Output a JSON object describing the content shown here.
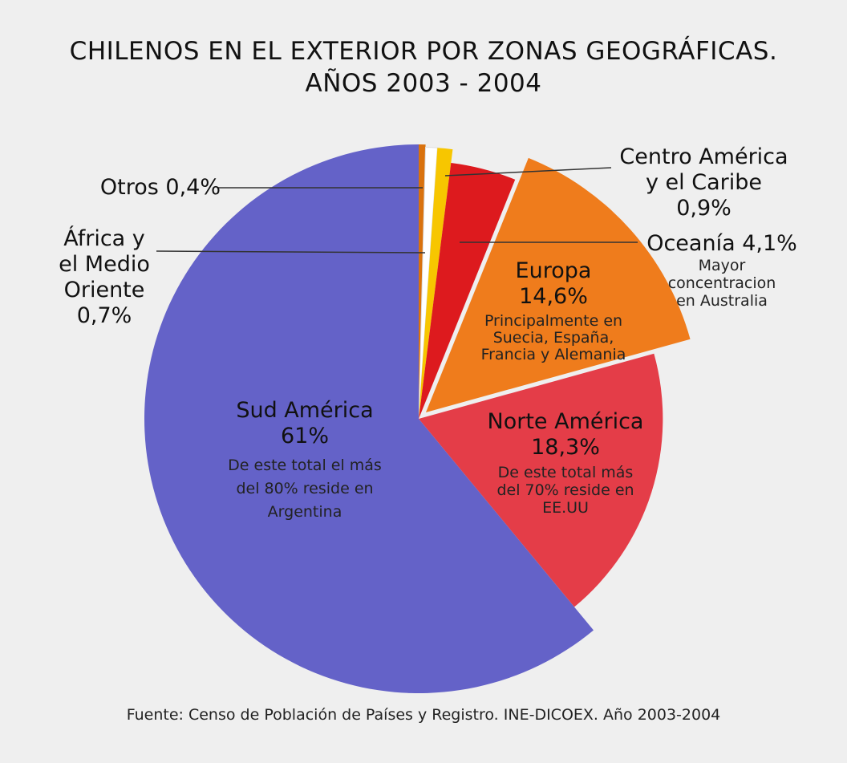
{
  "chart_data": {
    "type": "pie",
    "title_line1": "CHILENOS EN EL EXTERIOR POR ZONAS GEOGRÁFICAS.",
    "title_line2": "AÑOS 2003 - 2004",
    "source": "Fuente: Censo de Población de Países y Registro. INE-DICOEX. Año 2003-2004",
    "slices": [
      {
        "id": "otros",
        "value": 0.4,
        "color": "#d9720e",
        "label": "Otros 0,4%"
      },
      {
        "id": "africa",
        "value": 0.7,
        "color": "#ffffff",
        "label_lines": [
          "África y",
          "el Medio",
          "Oriente",
          "0,7%"
        ]
      },
      {
        "id": "centro",
        "value": 0.9,
        "color": "#f7c600",
        "label_lines": [
          "Centro América",
          "y el Caribe",
          "0,9%"
        ]
      },
      {
        "id": "oceania",
        "value": 4.1,
        "color": "#dd1a1e",
        "label": "Oceanía 4,1%",
        "note_lines": [
          "Mayor",
          "concentracion",
          "en Australia"
        ]
      },
      {
        "id": "europa",
        "value": 14.6,
        "color": "#ef7c1c",
        "label": "Europa",
        "value_label": "14,6%",
        "note_lines": [
          "Principalmente en",
          "Suecia, España,",
          "Francia y Alemania"
        ]
      },
      {
        "id": "norte",
        "value": 18.3,
        "color": "#e43d48",
        "label": "Norte América",
        "value_label": "18,3%",
        "note_lines": [
          "De este total más",
          "del 70% reside en",
          "EE.UU"
        ]
      },
      {
        "id": "sud",
        "value": 61,
        "color": "#6462c8",
        "label": "Sud América",
        "value_label": "61%",
        "note_lines": [
          "De este total el más",
          "del 80% reside en",
          "Argentina"
        ]
      }
    ]
  }
}
